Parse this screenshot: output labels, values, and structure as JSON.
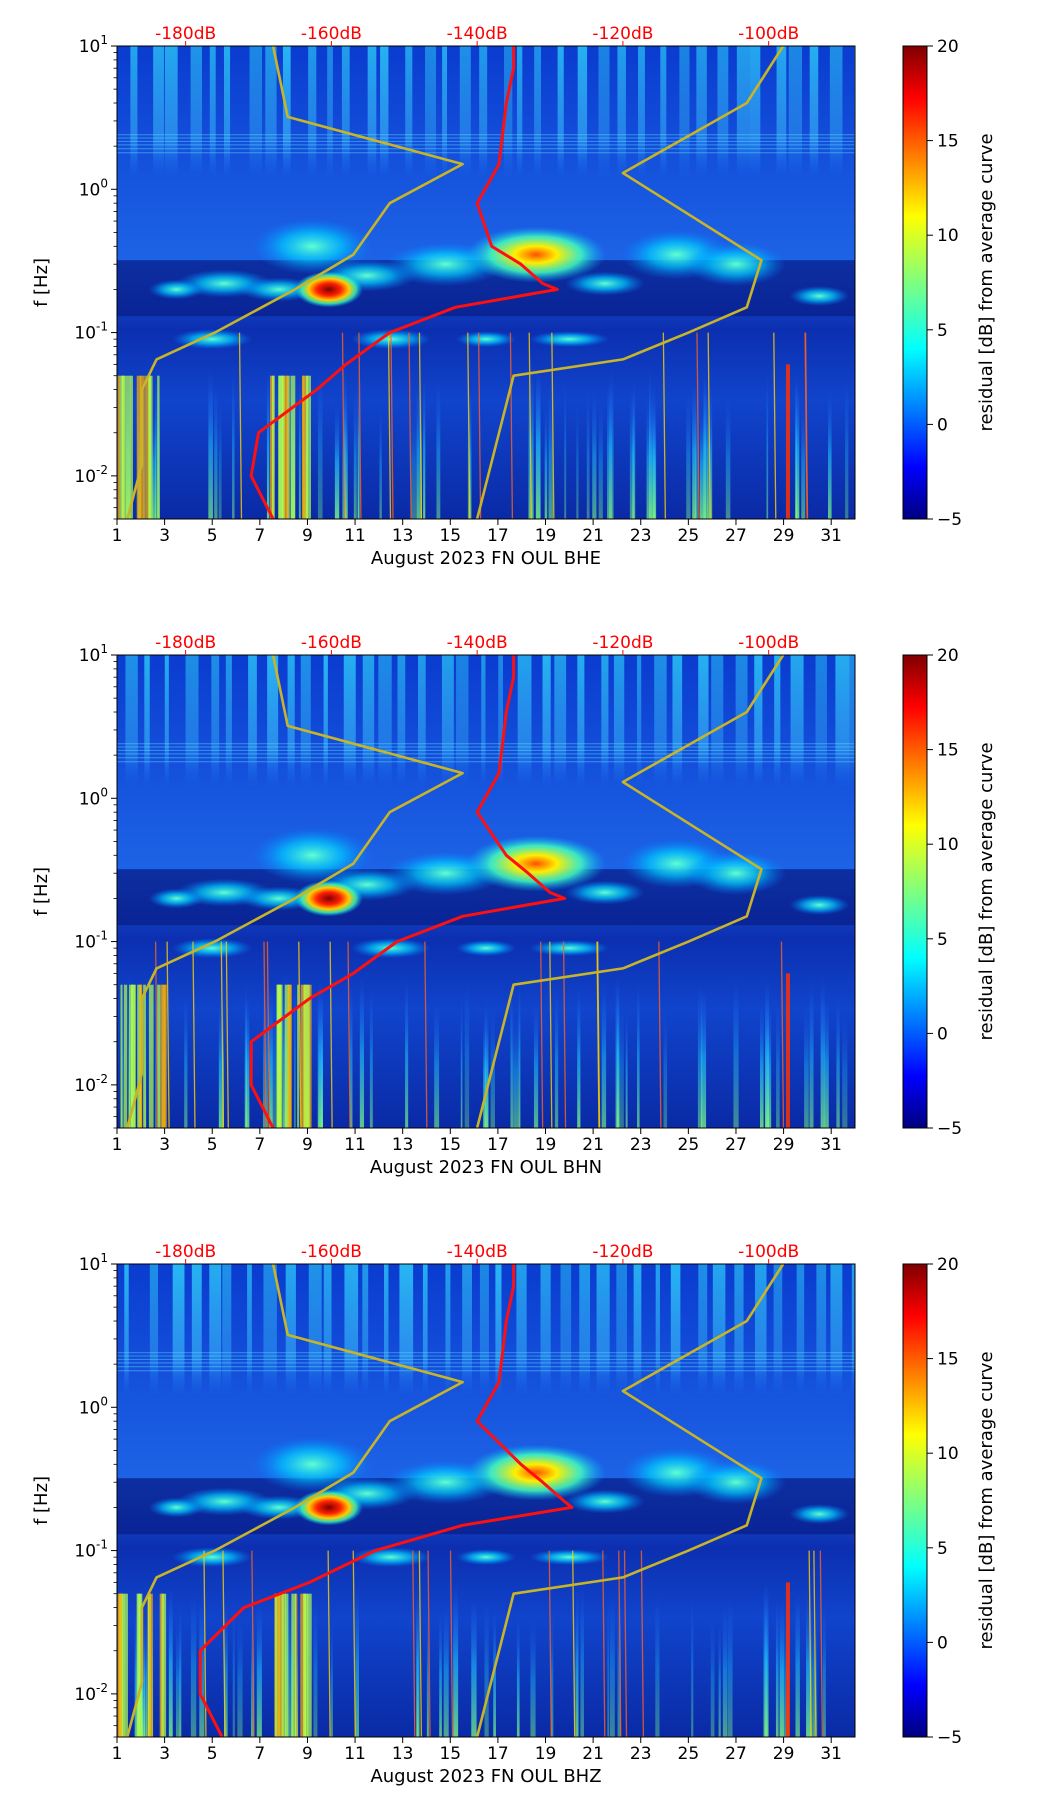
{
  "chart_data": [
    {
      "type": "heatmap",
      "xlabel": "August 2023 FN OUL  BHE",
      "ylabel": "f [Hz]",
      "x_ticks": [
        "1",
        "3",
        "5",
        "7",
        "9",
        "11",
        "13",
        "15",
        "17",
        "19",
        "21",
        "23",
        "25",
        "27",
        "29",
        "31"
      ],
      "xlim": [
        1,
        32
      ],
      "y_scale": "log",
      "y_ticks": [
        "10^-2",
        "10^-1",
        "10^0",
        "10^1"
      ],
      "ylim": [
        0.005,
        10
      ],
      "top_axis_ticks": [
        "-180dB",
        "-160dB",
        "-140dB",
        "-120dB",
        "-100dB"
      ],
      "top_axis_color": "#ff0000",
      "colorbar": {
        "label": "residual [dB] from average curve",
        "ticks": [
          "20",
          "15",
          "10",
          "5",
          "0",
          "−5"
        ],
        "range": [
          -5,
          20
        ],
        "colormap": "jet"
      },
      "series": [
        {
          "color": "#ff1010",
          "x": [
            -135,
            -135,
            -136,
            -137,
            -140,
            -138,
            -134,
            -131,
            -129,
            -143,
            -152,
            -158,
            -162,
            -170,
            -171,
            -168
          ],
          "y": [
            10,
            7,
            4,
            1.5,
            0.8,
            0.4,
            0.3,
            0.22,
            0.2,
            0.15,
            0.1,
            0.06,
            0.04,
            0.02,
            0.01,
            0.005
          ]
        },
        {
          "color": "#c8b428",
          "x": [
            -168,
            -166,
            -142,
            -152,
            -157,
            -165,
            -176,
            -184,
            -186,
            -186,
            -186,
            -188
          ],
          "y": [
            10,
            3.2,
            1.5,
            0.8,
            0.35,
            0.2,
            0.1,
            0.065,
            0.04,
            0.02,
            0.012,
            0.005
          ]
        },
        {
          "color": "#c8b428",
          "x": [
            -98,
            -103,
            -120,
            -101,
            -103,
            -111,
            -120,
            -135,
            -140
          ],
          "y": [
            10,
            4,
            1.3,
            0.32,
            0.15,
            0.1,
            0.065,
            0.05,
            0.005
          ]
        }
      ]
    },
    {
      "type": "heatmap",
      "xlabel": "August 2023 FN OUL  BHN",
      "ylabel": "f [Hz]",
      "x_ticks": [
        "1",
        "3",
        "5",
        "7",
        "9",
        "11",
        "13",
        "15",
        "17",
        "19",
        "21",
        "23",
        "25",
        "27",
        "29",
        "31"
      ],
      "xlim": [
        1,
        32
      ],
      "y_scale": "log",
      "y_ticks": [
        "10^-2",
        "10^-1",
        "10^0",
        "10^1"
      ],
      "ylim": [
        0.005,
        10
      ],
      "top_axis_ticks": [
        "-180dB",
        "-160dB",
        "-140dB",
        "-120dB",
        "-100dB"
      ],
      "top_axis_color": "#ff0000",
      "colorbar": {
        "label": "residual [dB] from average curve",
        "ticks": [
          "20",
          "15",
          "10",
          "5",
          "0",
          "−5"
        ],
        "range": [
          -5,
          20
        ],
        "colormap": "jet"
      },
      "series": [
        {
          "color": "#ff1010",
          "x": [
            -135,
            -135,
            -136,
            -137,
            -140,
            -136,
            -133,
            -130,
            -128,
            -142,
            -151,
            -157,
            -163,
            -171,
            -171,
            -168
          ],
          "y": [
            10,
            7,
            4,
            1.5,
            0.8,
            0.4,
            0.3,
            0.22,
            0.2,
            0.15,
            0.1,
            0.06,
            0.04,
            0.02,
            0.01,
            0.005
          ]
        },
        {
          "color": "#c8b428",
          "x": [
            -168,
            -166,
            -142,
            -152,
            -157,
            -165,
            -176,
            -184,
            -186,
            -186,
            -186,
            -188
          ],
          "y": [
            10,
            3.2,
            1.5,
            0.8,
            0.35,
            0.2,
            0.1,
            0.065,
            0.04,
            0.02,
            0.012,
            0.005
          ]
        },
        {
          "color": "#c8b428",
          "x": [
            -98,
            -103,
            -120,
            -101,
            -103,
            -111,
            -120,
            -135,
            -140
          ],
          "y": [
            10,
            4,
            1.3,
            0.32,
            0.15,
            0.1,
            0.065,
            0.05,
            0.005
          ]
        }
      ]
    },
    {
      "type": "heatmap",
      "xlabel": "August 2023 FN OUL  BHZ",
      "ylabel": "f [Hz]",
      "x_ticks": [
        "1",
        "3",
        "5",
        "7",
        "9",
        "11",
        "13",
        "15",
        "17",
        "19",
        "21",
        "23",
        "25",
        "27",
        "29",
        "31"
      ],
      "xlim": [
        1,
        32
      ],
      "y_scale": "log",
      "y_ticks": [
        "10^-2",
        "10^-1",
        "10^0",
        "10^1"
      ],
      "ylim": [
        0.005,
        10
      ],
      "top_axis_ticks": [
        "-180dB",
        "-160dB",
        "-140dB",
        "-120dB",
        "-100dB"
      ],
      "top_axis_color": "#ff0000",
      "colorbar": {
        "label": "residual [dB] from average curve",
        "ticks": [
          "20",
          "15",
          "10",
          "5",
          "0",
          "−5"
        ],
        "range": [
          -5,
          20
        ],
        "colormap": "jet"
      },
      "series": [
        {
          "color": "#ff1010",
          "x": [
            -135,
            -135,
            -136,
            -137,
            -140,
            -134,
            -131,
            -128,
            -127,
            -142,
            -154,
            -163,
            -172,
            -178,
            -178,
            -175
          ],
          "y": [
            10,
            7,
            4,
            1.5,
            0.8,
            0.4,
            0.3,
            0.22,
            0.2,
            0.15,
            0.1,
            0.06,
            0.04,
            0.02,
            0.01,
            0.005
          ]
        },
        {
          "color": "#c8b428",
          "x": [
            -168,
            -166,
            -142,
            -152,
            -157,
            -165,
            -176,
            -184,
            -186,
            -186,
            -186,
            -188
          ],
          "y": [
            10,
            3.2,
            1.5,
            0.8,
            0.35,
            0.2,
            0.1,
            0.065,
            0.04,
            0.02,
            0.012,
            0.005
          ]
        },
        {
          "color": "#c8b428",
          "x": [
            -98,
            -103,
            -120,
            -101,
            -103,
            -111,
            -120,
            -135,
            -140
          ],
          "y": [
            10,
            4,
            1.3,
            0.32,
            0.15,
            0.1,
            0.065,
            0.05,
            0.005
          ]
        }
      ]
    }
  ]
}
